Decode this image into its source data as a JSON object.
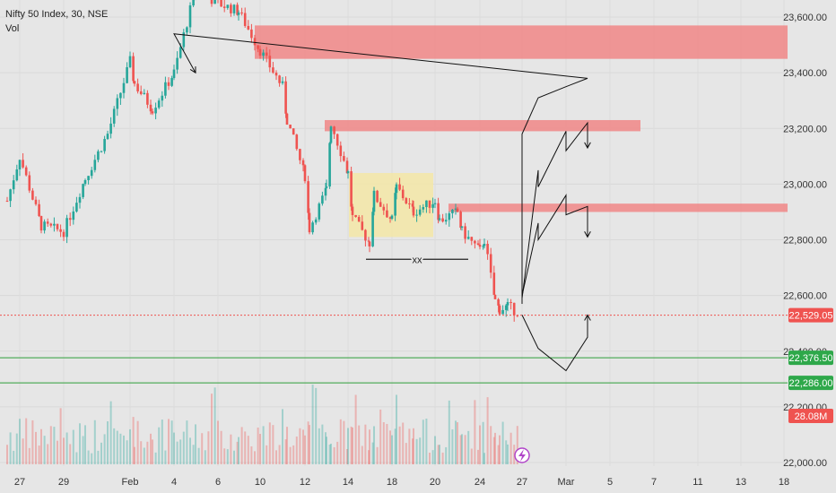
{
  "legend": {
    "title": "Nifty 50 Index, 30, NSE",
    "volume_label": "Vol"
  },
  "colors": {
    "background": "#e6e6e6",
    "up_candle": "#26a69a",
    "down_candle": "#ef5350",
    "resistance_zone": "#f08c8c",
    "consolidation_box": "#f3e6a6",
    "support_line": "#2e9e3a",
    "last_price_badge": "#ef5350",
    "support_badge": "#2ea84a",
    "axis_text": "#333333"
  },
  "chart_data": {
    "type": "candlestick",
    "symbol": "Nifty 50 Index",
    "interval": "30",
    "exchange": "NSE",
    "y_axis": {
      "ylim": [
        22000,
        23700
      ],
      "tick_labels": [
        "23,600.00",
        "23,400.00",
        "23,200.00",
        "23,000.00",
        "22,800.00",
        "22,600.00",
        "22,400.00",
        "22,200.00",
        "22,000.00"
      ],
      "tick_values": [
        23600,
        23400,
        23200,
        23000,
        22800,
        22600,
        22400,
        22200,
        22000
      ]
    },
    "x_axis": {
      "tick_labels": [
        "27",
        "29",
        "Feb",
        "4",
        "6",
        "10",
        "12",
        "14",
        "18",
        "20",
        "24",
        "27",
        "Mar",
        "5",
        "7",
        "11",
        "13",
        "18"
      ]
    },
    "last_price": {
      "label": "22,529.05",
      "value": 22529.05
    },
    "volume_label": "28.08M",
    "support_lines": [
      {
        "label": "22,376.50",
        "value": 22376.5
      },
      {
        "label": "22,286.00",
        "value": 22286.0
      }
    ],
    "resistance_zones": [
      {
        "y_from": 23450,
        "y_to": 23570,
        "start_label": "10"
      },
      {
        "y_from": 23190,
        "y_to": 23230,
        "start_label": "13"
      },
      {
        "y_from": 22900,
        "y_to": 22930,
        "start_label": "21"
      }
    ],
    "consolidation_box": {
      "y_from": 22810,
      "y_to": 23040,
      "start_label": "14",
      "end_label": "21"
    },
    "marked_low": {
      "label": "xx",
      "value": 22730
    },
    "price_path": [
      {
        "t": "27",
        "y": 22940
      },
      {
        "t": "27",
        "y": 23100
      },
      {
        "t": "28",
        "y": 22850
      },
      {
        "t": "29",
        "y": 22830
      },
      {
        "t": "30",
        "y": 23020
      },
      {
        "t": "31",
        "y": 23180
      },
      {
        "t": "Feb",
        "y": 23440
      },
      {
        "t": "Feb",
        "y": 23360
      },
      {
        "t": "3",
        "y": 23270
      },
      {
        "t": "4",
        "y": 23400
      },
      {
        "t": "5",
        "y": 23700
      },
      {
        "t": "6",
        "y": 23650
      },
      {
        "t": "7",
        "y": 23620
      },
      {
        "t": "10",
        "y": 23480
      },
      {
        "t": "11",
        "y": 23350
      },
      {
        "t": "11",
        "y": 23230
      },
      {
        "t": "12",
        "y": 23030
      },
      {
        "t": "12",
        "y": 22840
      },
      {
        "t": "13",
        "y": 22980
      },
      {
        "t": "13",
        "y": 23220
      },
      {
        "t": "14",
        "y": 23040
      },
      {
        "t": "14",
        "y": 22880
      },
      {
        "t": "17",
        "y": 22790
      },
      {
        "t": "17",
        "y": 22960
      },
      {
        "t": "18",
        "y": 22870
      },
      {
        "t": "18",
        "y": 22990
      },
      {
        "t": "19",
        "y": 22900
      },
      {
        "t": "20",
        "y": 22940
      },
      {
        "t": "20",
        "y": 22870
      },
      {
        "t": "21",
        "y": 22900
      },
      {
        "t": "21",
        "y": 22830
      },
      {
        "t": "24",
        "y": 22760
      },
      {
        "t": "24",
        "y": 22800
      },
      {
        "t": "25",
        "y": 22580
      },
      {
        "t": "25",
        "y": 22550
      },
      {
        "t": "26",
        "y": 22560
      },
      {
        "t": "27",
        "y": 22540
      }
    ],
    "projection_arrows": [
      [
        [
          "27",
          22570
        ],
        [
          "27",
          23180
        ],
        [
          "28",
          23310
        ],
        [
          "Mar",
          23350
        ],
        [
          "3",
          23380
        ],
        [
          "4",
          23540
        ],
        [
          "5",
          23400
        ]
      ],
      [
        [
          "27",
          22590
        ],
        [
          "28",
          23050
        ],
        [
          "28",
          22990
        ],
        [
          "Mar",
          23190
        ],
        [
          "Mar",
          23120
        ],
        [
          "3",
          23220
        ],
        [
          "3",
          23130
        ]
      ],
      [
        [
          "27",
          22600
        ],
        [
          "28",
          22860
        ],
        [
          "28",
          22800
        ],
        [
          "Mar",
          22960
        ],
        [
          "Mar",
          22890
        ],
        [
          "3",
          22920
        ],
        [
          "3",
          22810
        ]
      ],
      [
        [
          "27",
          22530
        ],
        [
          "28",
          22410
        ],
        [
          "Mar",
          22330
        ],
        [
          "3",
          22450
        ],
        [
          "3",
          22530
        ]
      ]
    ]
  }
}
